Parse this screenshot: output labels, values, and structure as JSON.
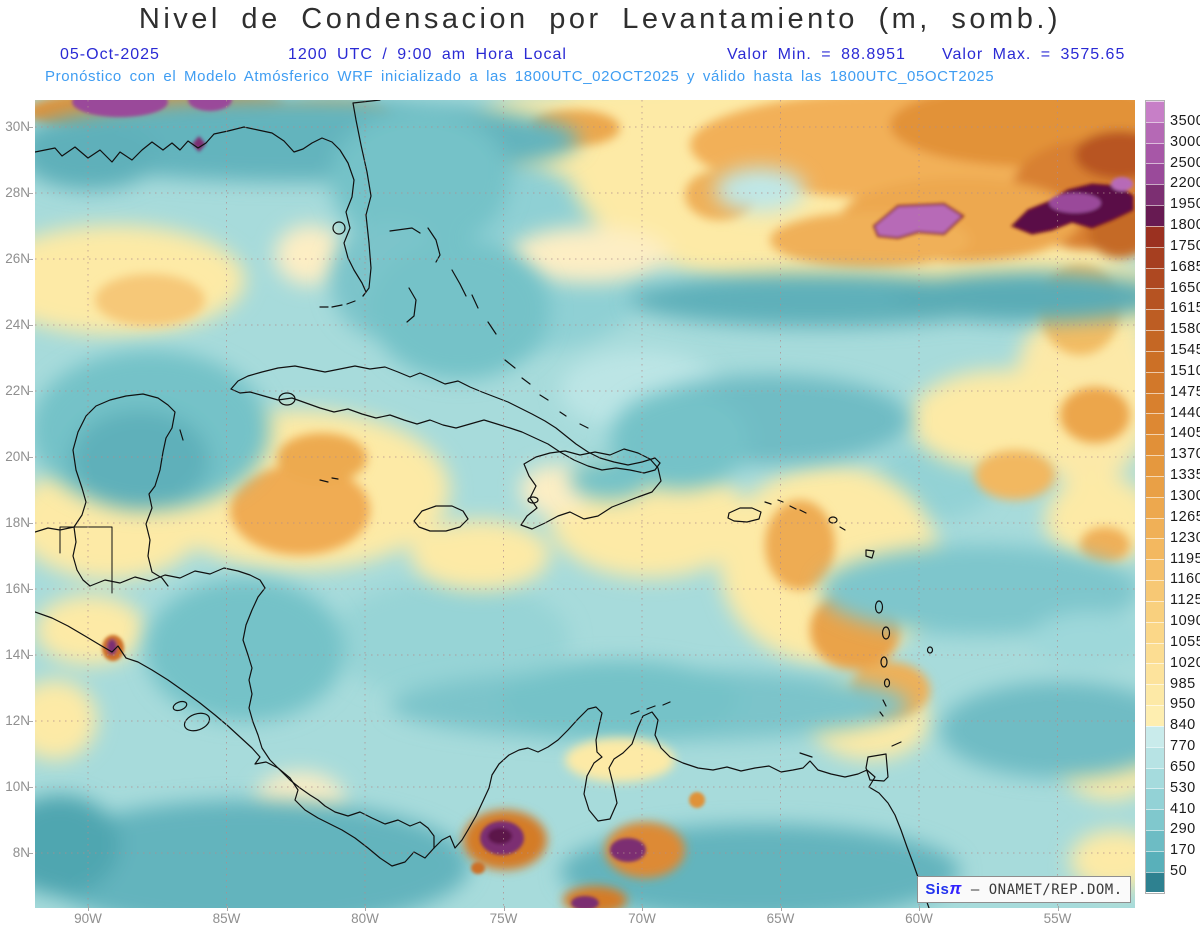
{
  "header": {
    "title": "Nivel de Condensacion por Levantamiento (m, somb.)",
    "date": "05-Oct-2025",
    "time": "1200 UTC / 9:00 am Hora Local",
    "valor_min_text": "Valor Min. = 88.8951",
    "valor_max_text": "Valor Max. = 3575.65",
    "forecast_line": "Pronóstico con el Modelo Atmósferico WRF inicializado a las 1800UTC_02OCT2025 y válido hasta las  1800UTC_05OCT2025"
  },
  "map": {
    "lat_labels": [
      "30N",
      "28N",
      "26N",
      "24N",
      "22N",
      "20N",
      "18N",
      "16N",
      "14N",
      "12N",
      "10N",
      "8N"
    ],
    "lon_labels": [
      "90W",
      "85W",
      "80W",
      "75W",
      "70W",
      "65W",
      "60W",
      "55W"
    ]
  },
  "colorbar": {
    "labels": [
      "3500",
      "3000",
      "2500",
      "2200",
      "1950",
      "1800",
      "1750",
      "1685",
      "1650",
      "1615",
      "1580",
      "1545",
      "1510",
      "1475",
      "1440",
      "1405",
      "1370",
      "1335",
      "1300",
      "1265",
      "1230",
      "1195",
      "1160",
      "1125",
      "1090",
      "1055",
      "1020",
      "985",
      "950",
      "840",
      "770",
      "650",
      "530",
      "410",
      "290",
      "170",
      "50"
    ],
    "colors": [
      "#c77fc7",
      "#b569b5",
      "#a757a7",
      "#9a4a9a",
      "#7c2f72",
      "#671a52",
      "#9b3120",
      "#a63f20",
      "#ae4821",
      "#b65322",
      "#bd5d23",
      "#c56724",
      "#cc7026",
      "#d2782a",
      "#d8802e",
      "#dd8833",
      "#e19038",
      "#e5983e",
      "#e9a046",
      "#eda84e",
      "#f0b057",
      "#f3b860",
      "#f5c06a",
      "#f7c874",
      "#f9d07e",
      "#fbd788",
      "#fcdd92",
      "#fde39c",
      "#fde9a6",
      "#feeeb0",
      "#c9ebeb",
      "#b7e3e4",
      "#a5dbdd",
      "#93d2d6",
      "#80c8cd",
      "#6dbcc4",
      "#59b0ba",
      "#2e8190"
    ]
  },
  "watermark": {
    "sis": "Sis",
    "pi": "π",
    "org": "– ONAMET/REP.DOM."
  },
  "chart_data": {
    "type": "heatmap",
    "title": "Nivel de Condensacion por Levantamiento (m, somb.)",
    "date": "05-Oct-2025",
    "valid_time": "1200 UTC / 9:00 am Hora Local",
    "value_min": 88.8951,
    "value_max": 3575.65,
    "units": "m",
    "model": "WRF",
    "init": "1800UTC_02OCT2025",
    "valid_until": "1800UTC_05OCT2025",
    "levels": [
      50,
      170,
      290,
      410,
      530,
      650,
      770,
      840,
      950,
      985,
      1020,
      1055,
      1090,
      1125,
      1160,
      1195,
      1230,
      1265,
      1300,
      1335,
      1370,
      1405,
      1440,
      1475,
      1510,
      1545,
      1580,
      1615,
      1650,
      1685,
      1750,
      1800,
      1950,
      2200,
      2500,
      3000,
      3500
    ],
    "lat_ticks": [
      "8N",
      "10N",
      "12N",
      "14N",
      "16N",
      "18N",
      "20N",
      "22N",
      "24N",
      "26N",
      "28N",
      "30N"
    ],
    "lon_ticks": [
      "90W",
      "85W",
      "80W",
      "75W",
      "70W",
      "65W",
      "60W",
      "55W"
    ],
    "legend_position": "right",
    "grid": true
  }
}
